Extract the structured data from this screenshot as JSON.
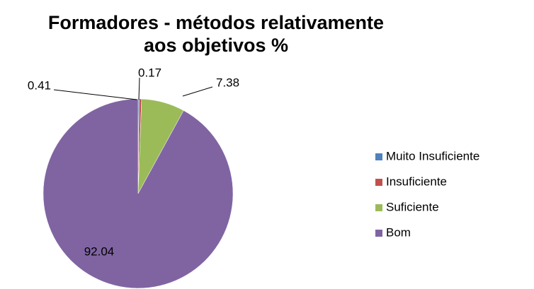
{
  "chart_data": {
    "type": "pie",
    "title": "Formadores - métodos relativamente aos objetivos %",
    "categories": [
      "Muito Insuficiente",
      "Insuficiente",
      "Suficiente",
      "Bom"
    ],
    "values": [
      0.17,
      0.41,
      7.38,
      92.04
    ],
    "colors": [
      "#4f81bd",
      "#c0504d",
      "#9bbb59",
      "#8064a2"
    ],
    "legend": "right"
  }
}
